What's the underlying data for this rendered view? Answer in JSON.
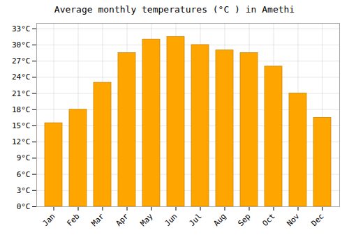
{
  "chart_data": {
    "type": "bar",
    "title": "Average monthly temperatures (°C ) in Amethi",
    "categories": [
      "Jan",
      "Feb",
      "Mar",
      "Apr",
      "May",
      "Jun",
      "Jul",
      "Aug",
      "Sep",
      "Oct",
      "Nov",
      "Dec"
    ],
    "values": [
      15.5,
      18.0,
      23.0,
      28.5,
      31.0,
      31.5,
      30.0,
      29.0,
      28.5,
      26.0,
      21.0,
      16.5
    ],
    "color": "#FFA500",
    "ylim": [
      0,
      34
    ],
    "yticks": [
      {
        "value": 0,
        "label": "0°C"
      },
      {
        "value": 3,
        "label": "3°C"
      },
      {
        "value": 6,
        "label": "6°C"
      },
      {
        "value": 9,
        "label": "9°C"
      },
      {
        "value": 12,
        "label": "12°C"
      },
      {
        "value": 15,
        "label": "15°C"
      },
      {
        "value": 18,
        "label": "18°C"
      },
      {
        "value": 21,
        "label": "21°C"
      },
      {
        "value": 24,
        "label": "24°C"
      },
      {
        "value": 27,
        "label": "27°C"
      },
      {
        "value": 30,
        "label": "30°C"
      },
      {
        "value": 33,
        "label": "33°C"
      }
    ],
    "grid": true
  }
}
